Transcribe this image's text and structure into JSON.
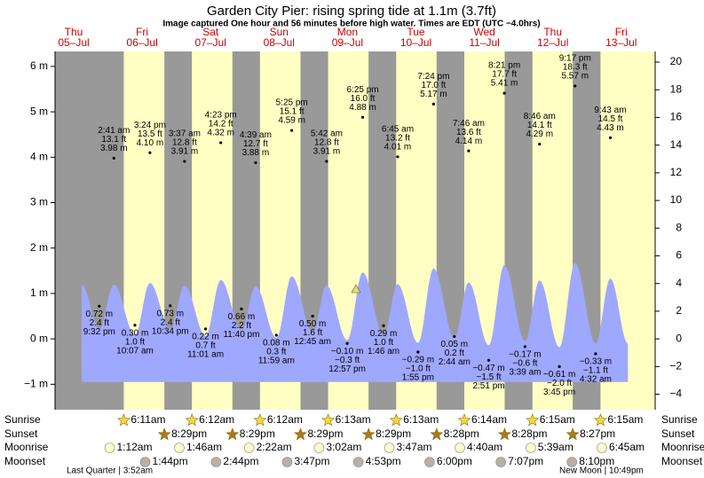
{
  "chart_data": {
    "type": "tide",
    "title": "Garden City Pier: rising  spring tide at 1.1m (3.7ft)",
    "subtitle": "Image captured One hour and 56 minutes before high water. Times are EDT (UTC −4.0hrs)",
    "ylim": [
      -1.56,
      6.33
    ],
    "yticks": [
      {
        "value": -1,
        "label": "−1 m"
      },
      {
        "value": 0,
        "label": "0 m"
      },
      {
        "value": 1,
        "label": "1 m"
      },
      {
        "value": 2,
        "label": "2 m"
      },
      {
        "value": 3,
        "label": "3 m"
      },
      {
        "value": 4,
        "label": "4 m"
      },
      {
        "value": 5,
        "label": "5 m"
      },
      {
        "value": 6,
        "label": "6 m"
      }
    ],
    "y2lim": [
      -5.12,
      20.77
    ],
    "y2ticks": [
      {
        "value": -4,
        "label": "−4"
      },
      {
        "value": -2,
        "label": "−2"
      },
      0,
      2,
      4,
      6,
      8,
      10,
      12,
      14,
      16,
      18,
      20
    ],
    "row_labels": [
      "Sunrise",
      "Sunset",
      "Moonrise",
      "Moonset"
    ],
    "days": [
      {
        "name": "Thu",
        "date": "05–Jul",
        "tides": [
          {
            "time": "9:32 pm",
            "ft": "2.4 ft",
            "value": 0.72,
            "value_label": "0.72 m"
          }
        ]
      },
      {
        "name": "Fri",
        "date": "06–Jul",
        "sunrise": "6:11am",
        "sunset": "8:29pm",
        "moonrise": "1:12am",
        "moonset": "1:44pm",
        "tides": [
          {
            "time": "2:41 am",
            "ft": "13.1 ft",
            "value": 3.98,
            "value_label": "3.98 m"
          },
          {
            "time": "10:07 am",
            "ft": "1.0 ft",
            "value": 0.3,
            "value_label": "0.30 m"
          },
          {
            "time": "3:24 pm",
            "ft": "13.5 ft",
            "value": 4.1,
            "value_label": "4.10 m"
          },
          {
            "time": "10:34 pm",
            "ft": "2.4 ft",
            "value": 0.73,
            "value_label": "0.73 m"
          }
        ]
      },
      {
        "name": "Sat",
        "date": "07–Jul",
        "sunrise": "6:12am",
        "sunset": "8:29pm",
        "moonrise": "1:46am",
        "moonset": "2:44pm",
        "tides": [
          {
            "time": "3:37 am",
            "ft": "12.8 ft",
            "value": 3.91,
            "value_label": "3.91 m"
          },
          {
            "time": "11:01 am",
            "ft": "0.7 ft",
            "value": 0.22,
            "value_label": "0.22 m"
          },
          {
            "time": "4:23 pm",
            "ft": "14.2 ft",
            "value": 4.32,
            "value_label": "4.32 m"
          },
          {
            "time": "11:40 pm",
            "ft": "2.2 ft",
            "value": 0.66,
            "value_label": "0.66 m"
          }
        ]
      },
      {
        "name": "Sun",
        "date": "08–Jul",
        "sunrise": "6:12am",
        "sunset": "8:29pm",
        "moonrise": "2:22am",
        "moonset": "3:47pm",
        "tides": [
          {
            "time": "4:39 am",
            "ft": "12.7 ft",
            "value": 3.88,
            "value_label": "3.88 m"
          },
          {
            "time": "11:59 am",
            "ft": "0.3 ft",
            "value": 0.08,
            "value_label": "0.08 m"
          },
          {
            "time": "5:25 pm",
            "ft": "15.1 ft",
            "value": 4.59,
            "value_label": "4.59 m"
          }
        ]
      },
      {
        "name": "Mon",
        "date": "09–Jul",
        "sunrise": "6:13am",
        "sunset": "8:29pm",
        "moonrise": "3:02am",
        "moonset": "4:53pm",
        "tides": [
          {
            "time": "12:45 am",
            "ft": "1.6 ft",
            "value": 0.5,
            "value_label": "0.50 m"
          },
          {
            "time": "5:42 am",
            "ft": "12.8 ft",
            "value": 3.91,
            "value_label": "3.91 m"
          },
          {
            "time": "12:57 pm",
            "ft": "−0.3 ft",
            "value": -0.1,
            "value_label": "−0.10 m"
          },
          {
            "time": "6:25 pm",
            "ft": "16.0 ft",
            "value": 4.88,
            "value_label": "4.88 m"
          }
        ]
      },
      {
        "name": "Tue",
        "date": "10–Jul",
        "sunrise": "6:13am",
        "sunset": "8:28pm",
        "moonrise": "3:47am",
        "moonset": "6:00pm",
        "tides": [
          {
            "time": "1:46 am",
            "ft": "1.0 ft",
            "value": 0.29,
            "value_label": "0.29 m"
          },
          {
            "time": "6:45 am",
            "ft": "13.2 ft",
            "value": 4.01,
            "value_label": "4.01 m"
          },
          {
            "time": "1:55 pm",
            "ft": "−1.0 ft",
            "value": -0.29,
            "value_label": "−0.29 m"
          },
          {
            "time": "7:24 pm",
            "ft": "17.0 ft",
            "value": 5.17,
            "value_label": "5.17 m"
          }
        ]
      },
      {
        "name": "Wed",
        "date": "11–Jul",
        "sunrise": "6:14am",
        "sunset": "8:28pm",
        "moonrise": "4:40am",
        "moonset": "7:07pm",
        "tides": [
          {
            "time": "2:44 am",
            "ft": "0.2 ft",
            "value": 0.05,
            "value_label": "0.05 m"
          },
          {
            "time": "7:46 am",
            "ft": "13.6 ft",
            "value": 4.14,
            "value_label": "4.14 m"
          },
          {
            "time": "2:51 pm",
            "ft": "−1.5 ft",
            "value": -0.47,
            "value_label": "−0.47 m"
          },
          {
            "time": "8:21 pm",
            "ft": "17.7 ft",
            "value": 5.41,
            "value_label": "5.41 m"
          }
        ]
      },
      {
        "name": "Thu",
        "date": "12–Jul",
        "sunrise": "6:15am",
        "sunset": "8:27pm",
        "moonrise": "5:39am",
        "moonset": "8:10pm",
        "tides": [
          {
            "time": "3:39 am",
            "ft": "−0.6 ft",
            "value": -0.17,
            "value_label": "−0.17 m"
          },
          {
            "time": "8:46 am",
            "ft": "14.1 ft",
            "value": 4.29,
            "value_label": "4.29 m"
          },
          {
            "time": "3:45 pm",
            "ft": "−2.0 ft",
            "value": -0.61,
            "value_label": "−0.61 m"
          },
          {
            "time": "9:17 pm",
            "ft": "18.3 ft",
            "value": 5.57,
            "value_label": "5.57 m"
          }
        ]
      },
      {
        "name": "Fri",
        "date": "13–Jul",
        "sunrise": "6:15am",
        "moonrise": "6:45am",
        "tides": [
          {
            "time": "4:32 am",
            "ft": "−1.1 ft",
            "value": -0.33,
            "value_label": "−0.33 m"
          },
          {
            "time": "9:43 am",
            "ft": "14.5 ft",
            "value": 4.43,
            "value_label": "4.43 m"
          }
        ]
      }
    ],
    "moon_phases": [
      "Last Quarter | 3:52am",
      "New Moon | 10:49pm"
    ]
  }
}
